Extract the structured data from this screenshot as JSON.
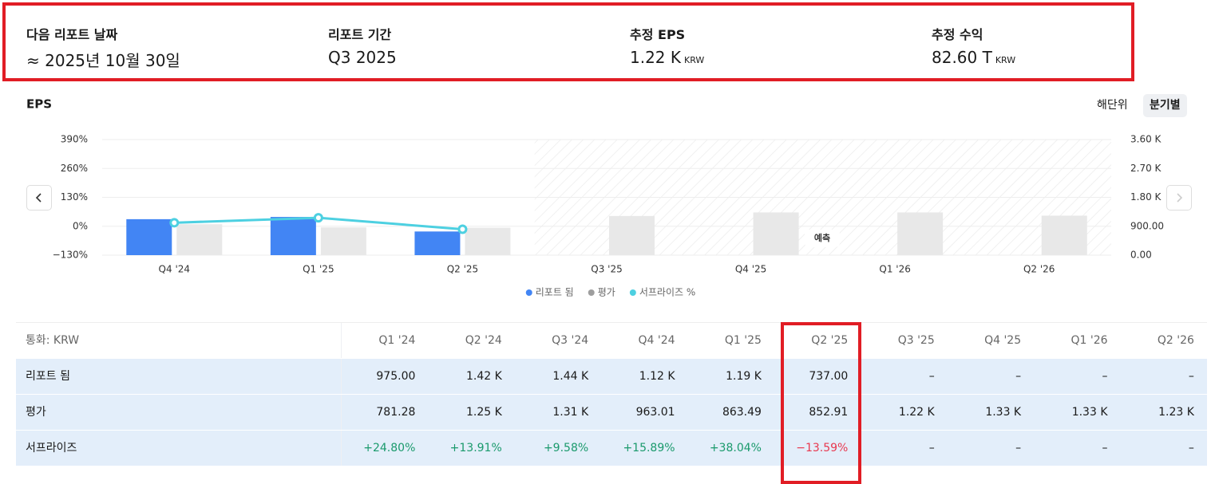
{
  "summary": [
    {
      "label": "다음 리포트 날짜",
      "value": "≈ 2025년 10월 30일"
    },
    {
      "label": "리포트 기간",
      "value": "Q3 2025"
    },
    {
      "label": "추정 EPS",
      "value": "1.22 K",
      "unit": "KRW"
    },
    {
      "label": "추정 수익",
      "value": "82.60 T",
      "unit": "KRW"
    }
  ],
  "period_toggle": [
    "해단위",
    "분기별"
  ],
  "chart_data": {
    "type": "bar",
    "title": "EPS",
    "categories": [
      "Q4 '24",
      "Q1 '25",
      "Q2 '25",
      "Q3 '25",
      "Q4 '25",
      "Q1 '26",
      "Q2 '26"
    ],
    "series": [
      {
        "name": "리포트 됨",
        "color": "#4285f4",
        "axis": "y2",
        "values": [
          1120,
          1190,
          737,
          null,
          null,
          null,
          null
        ]
      },
      {
        "name": "평가",
        "color": "#e8e8e8",
        "legend_color": "#9e9e9e",
        "axis": "y2",
        "values": [
          963.01,
          863.49,
          852.91,
          1220,
          1330,
          1330,
          1230
        ]
      },
      {
        "name": "서프라이즈 %",
        "color": "#4dd0e1",
        "type": "line",
        "values": [
          15.89,
          38.04,
          -13.59,
          null,
          null,
          null,
          null
        ]
      }
    ],
    "ylim": [
      -130,
      390
    ],
    "yticks": [
      {
        "value": -130,
        "label": "−130%"
      },
      {
        "value": 0,
        "label": "0%"
      },
      {
        "value": 130,
        "label": "130%"
      },
      {
        "value": 260,
        "label": "260%"
      },
      {
        "value": 390,
        "label": "390%"
      }
    ],
    "y2lim": [
      0,
      3600
    ],
    "y2ticks": [
      {
        "value": 0,
        "label": "0.00"
      },
      {
        "value": 900,
        "label": "900.00"
      },
      {
        "value": 1800,
        "label": "1.80 K"
      },
      {
        "value": 2700,
        "label": "2.70 K"
      },
      {
        "value": 3600,
        "label": "3.60 K"
      }
    ],
    "grid": true,
    "forecast_label": "예측"
  },
  "table": {
    "header": [
      "통화: KRW",
      "Q1 '24",
      "Q2 '24",
      "Q3 '24",
      "Q4 '24",
      "Q1 '25",
      "Q2 '25",
      "Q3 '25",
      "Q4 '25",
      "Q1 '26",
      "Q2 '26"
    ],
    "rows": [
      [
        "리포트 됨",
        "975.00",
        "1.42 K",
        "1.44 K",
        "1.12 K",
        "1.19 K",
        "737.00",
        "–",
        "–",
        "–",
        "–"
      ],
      [
        "평가",
        "781.28",
        "1.25 K",
        "1.31 K",
        "963.01",
        "863.49",
        "852.91",
        "1.22 K",
        "1.33 K",
        "1.33 K",
        "1.23 K"
      ],
      [
        "서프라이즈",
        "+24.80%",
        "+13.91%",
        "+9.58%",
        "+15.89%",
        "+38.04%",
        "−13.59%",
        "–",
        "–",
        "–",
        "–"
      ]
    ],
    "positive_color": "#1a9a6c",
    "negative_color": "#e8384f"
  }
}
